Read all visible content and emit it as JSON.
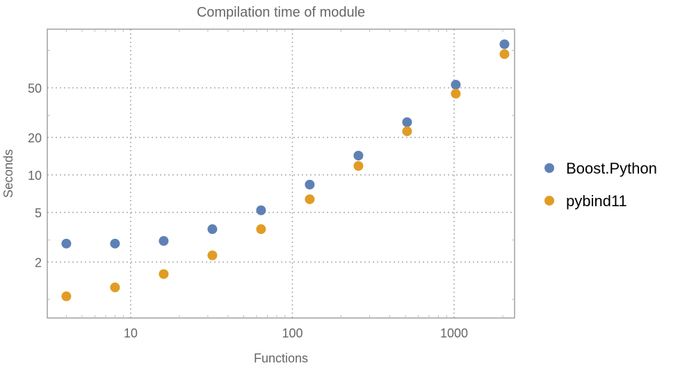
{
  "chart_data": {
    "type": "scatter",
    "title": "Compilation time of module",
    "xlabel": "Functions",
    "ylabel": "Seconds",
    "xscale": "log",
    "yscale": "log",
    "xlim": [
      3.05,
      2366
    ],
    "ylim": [
      0.71,
      148
    ],
    "xticks": [
      {
        "v": 10,
        "label": "10"
      },
      {
        "v": 100,
        "label": "100"
      },
      {
        "v": 1000,
        "label": "1000"
      }
    ],
    "yticks": [
      {
        "v": 2,
        "label": "2"
      },
      {
        "v": 5,
        "label": "5"
      },
      {
        "v": 10,
        "label": "10"
      },
      {
        "v": 20,
        "label": "20"
      },
      {
        "v": 50,
        "label": "50"
      }
    ],
    "grid": true,
    "legend_position": "right",
    "x": [
      4,
      8,
      16,
      32,
      64,
      128,
      256,
      512,
      1024,
      2048
    ],
    "series": [
      {
        "name": "Boost.Python",
        "color": "#5E81B5",
        "values": [
          2.81,
          2.81,
          2.95,
          3.67,
          5.2,
          8.36,
          14.3,
          26.5,
          53,
          112
        ]
      },
      {
        "name": "pybind11",
        "color": "#E19C24",
        "values": [
          1.06,
          1.25,
          1.6,
          2.26,
          3.67,
          6.38,
          11.8,
          22.4,
          44.9,
          93.3
        ]
      }
    ]
  }
}
